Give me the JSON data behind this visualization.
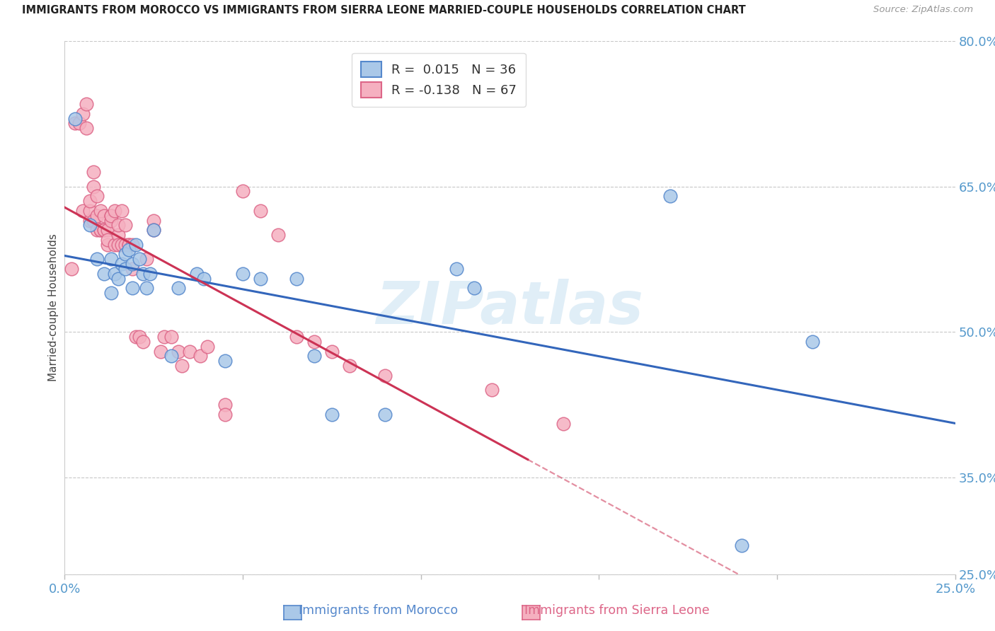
{
  "title": "IMMIGRANTS FROM MOROCCO VS IMMIGRANTS FROM SIERRA LEONE MARRIED-COUPLE HOUSEHOLDS CORRELATION CHART",
  "source": "Source: ZipAtlas.com",
  "ylabel": "Married-couple Households",
  "xlim": [
    0.0,
    0.25
  ],
  "ylim": [
    0.25,
    0.8
  ],
  "xtick_positions": [
    0.0,
    0.05,
    0.1,
    0.15,
    0.2,
    0.25
  ],
  "xtick_labels": [
    "0.0%",
    "",
    "",
    "",
    "",
    "25.0%"
  ],
  "ytick_positions": [
    0.25,
    0.35,
    0.5,
    0.65,
    0.8
  ],
  "ytick_labels": [
    "25.0%",
    "35.0%",
    "50.0%",
    "65.0%",
    "80.0%"
  ],
  "morocco_R": 0.015,
  "morocco_N": 36,
  "sierraleone_R": -0.138,
  "sierraleone_N": 67,
  "morocco_face_color": "#aac8e8",
  "morocco_edge_color": "#5588cc",
  "sierra_face_color": "#f5b0c0",
  "sierra_edge_color": "#dd6688",
  "trendline_morocco_color": "#3366bb",
  "trendline_sierra_color": "#cc3355",
  "watermark_text": "ZIPatlas",
  "watermark_color": "#cce3f2",
  "bottom_label_morocco": "Immigrants from Morocco",
  "bottom_label_sierra": "Immigrants from Sierra Leone",
  "bottom_color_morocco": "#5588cc",
  "bottom_color_sierra": "#dd6688",
  "morocco_x": [
    0.003,
    0.007,
    0.009,
    0.011,
    0.013,
    0.013,
    0.014,
    0.015,
    0.016,
    0.017,
    0.017,
    0.018,
    0.019,
    0.019,
    0.02,
    0.021,
    0.022,
    0.023,
    0.024,
    0.025,
    0.03,
    0.032,
    0.037,
    0.039,
    0.045,
    0.05,
    0.055,
    0.065,
    0.07,
    0.075,
    0.09,
    0.11,
    0.115,
    0.17,
    0.19,
    0.21
  ],
  "morocco_y": [
    0.72,
    0.61,
    0.575,
    0.56,
    0.575,
    0.54,
    0.56,
    0.555,
    0.57,
    0.565,
    0.58,
    0.585,
    0.57,
    0.545,
    0.59,
    0.575,
    0.56,
    0.545,
    0.56,
    0.605,
    0.475,
    0.545,
    0.56,
    0.555,
    0.47,
    0.56,
    0.555,
    0.555,
    0.475,
    0.415,
    0.415,
    0.565,
    0.545,
    0.64,
    0.28,
    0.49
  ],
  "sierra_x": [
    0.002,
    0.003,
    0.004,
    0.005,
    0.005,
    0.006,
    0.006,
    0.007,
    0.007,
    0.007,
    0.008,
    0.008,
    0.008,
    0.009,
    0.009,
    0.009,
    0.01,
    0.01,
    0.01,
    0.011,
    0.011,
    0.011,
    0.012,
    0.012,
    0.012,
    0.013,
    0.013,
    0.013,
    0.014,
    0.014,
    0.015,
    0.015,
    0.015,
    0.016,
    0.016,
    0.017,
    0.017,
    0.018,
    0.018,
    0.019,
    0.019,
    0.02,
    0.021,
    0.022,
    0.023,
    0.025,
    0.025,
    0.027,
    0.028,
    0.03,
    0.032,
    0.033,
    0.035,
    0.038,
    0.04,
    0.045,
    0.045,
    0.05,
    0.055,
    0.06,
    0.065,
    0.07,
    0.075,
    0.08,
    0.09,
    0.12,
    0.14
  ],
  "sierra_y": [
    0.565,
    0.715,
    0.715,
    0.625,
    0.725,
    0.735,
    0.71,
    0.615,
    0.625,
    0.635,
    0.65,
    0.665,
    0.615,
    0.605,
    0.62,
    0.64,
    0.625,
    0.605,
    0.605,
    0.605,
    0.62,
    0.605,
    0.605,
    0.59,
    0.595,
    0.62,
    0.615,
    0.62,
    0.625,
    0.59,
    0.6,
    0.59,
    0.61,
    0.59,
    0.625,
    0.61,
    0.59,
    0.59,
    0.59,
    0.565,
    0.59,
    0.495,
    0.495,
    0.49,
    0.575,
    0.615,
    0.605,
    0.48,
    0.495,
    0.495,
    0.48,
    0.465,
    0.48,
    0.475,
    0.485,
    0.425,
    0.415,
    0.645,
    0.625,
    0.6,
    0.495,
    0.49,
    0.48,
    0.465,
    0.455,
    0.44,
    0.405
  ]
}
